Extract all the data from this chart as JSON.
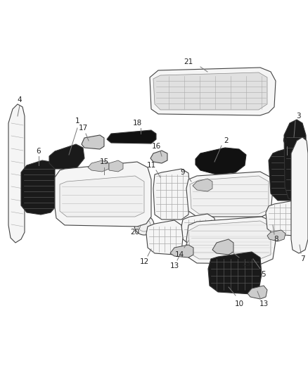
{
  "bg_color": "#ffffff",
  "fig_width": 4.38,
  "fig_height": 5.33,
  "dpi": 100,
  "lc": "#444444",
  "lw": 0.8,
  "label_fontsize": 7.5,
  "label_color": "#222222",
  "leader_color": "#777777"
}
